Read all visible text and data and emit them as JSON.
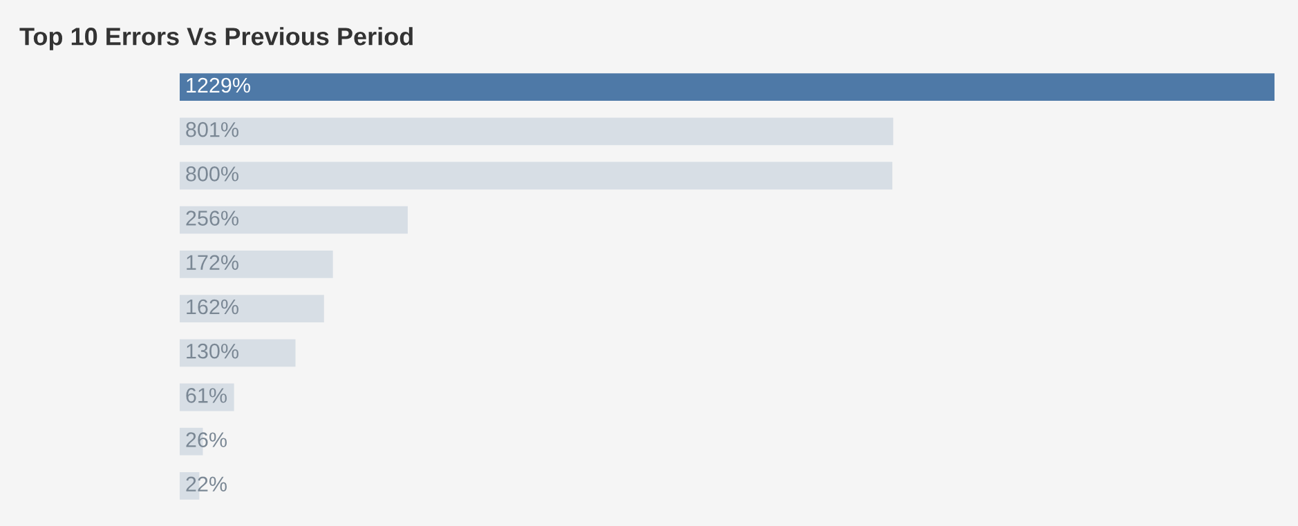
{
  "chart_data": {
    "type": "bar",
    "orientation": "horizontal",
    "title": "Top 10 Errors Vs Previous Period",
    "categories": [
      null,
      null,
      null,
      null,
      null,
      null,
      null,
      null,
      null,
      null
    ],
    "values": [
      1229,
      801,
      800,
      256,
      172,
      162,
      130,
      61,
      26,
      22
    ],
    "colors": [
      "#4e79a7",
      "#d7dee5",
      "#d7dee5",
      "#d7dee5",
      "#d7dee5",
      "#d7dee5",
      "#d7dee5",
      "#d7dee5",
      "#d7dee5",
      "#d7dee5"
    ],
    "value_labels": [
      "1229%",
      "801%",
      "800%",
      "256%",
      "172%",
      "162%",
      "130%",
      "61%",
      "26%",
      "22%"
    ],
    "tick_labels": false,
    "grid": false,
    "legend": false
  }
}
